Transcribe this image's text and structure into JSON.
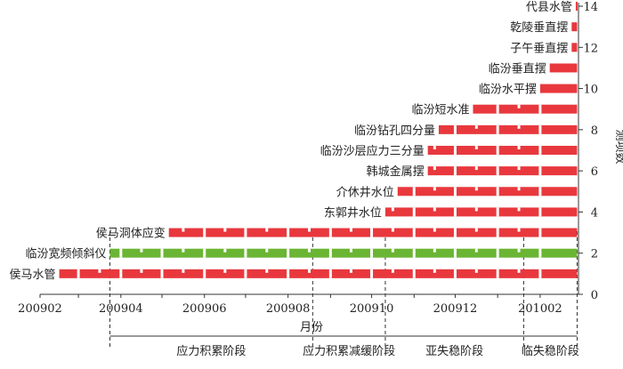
{
  "chart_data": {
    "type": "bar",
    "subtype": "horizontal-timeline",
    "xlabel": "月份",
    "ylabel": "测项数",
    "x_tick_labels": [
      "200902",
      "200904",
      "200906",
      "200908",
      "200910",
      "200912",
      "201002"
    ],
    "xlim": [
      "2009-02",
      "2010-02"
    ],
    "ylim": [
      0,
      14
    ],
    "y_ticks": [
      0,
      2,
      4,
      6,
      8,
      10,
      12,
      14
    ],
    "y_axis_side": "right",
    "colors": {
      "red": "#e8383d",
      "green": "#6ab533",
      "axis": "#333333",
      "dash": "#333333"
    },
    "bars": [
      {
        "label": "侯马水管",
        "level": 1,
        "start": "2009-02-15",
        "end": "2010-02-28",
        "color": "red"
      },
      {
        "label": "临汾宽频倾斜仪",
        "level": 2,
        "start": "2009-03-24",
        "end": "2010-02-28",
        "color": "green"
      },
      {
        "label": "侯马洞体应变",
        "level": 3,
        "start": "2009-05-06",
        "end": "2010-02-28",
        "color": "red"
      },
      {
        "label": "东郭井水位",
        "level": 4,
        "start": "2009-10-11",
        "end": "2010-02-28",
        "color": "red"
      },
      {
        "label": "介休井水位",
        "level": 5,
        "start": "2009-10-20",
        "end": "2010-02-28",
        "color": "red"
      },
      {
        "label": "韩城金属摆",
        "level": 6,
        "start": "2009-11-11",
        "end": "2010-02-28",
        "color": "red"
      },
      {
        "label": "临汾沙层应力三分量",
        "level": 7,
        "start": "2009-11-11",
        "end": "2010-02-28",
        "color": "red"
      },
      {
        "label": "临汾钻孔四分量",
        "level": 8,
        "start": "2009-11-19",
        "end": "2010-02-28",
        "color": "red"
      },
      {
        "label": "临汾短水准",
        "level": 9,
        "start": "2009-12-14",
        "end": "2010-02-28",
        "color": "red"
      },
      {
        "label": "临汾水平摆",
        "level": 10,
        "start": "2010-02-01",
        "end": "2010-02-28",
        "color": "red"
      },
      {
        "label": "临汾垂直摆",
        "level": 11,
        "start": "2010-02-08",
        "end": "2010-02-28",
        "color": "red"
      },
      {
        "label": "子午垂直摆",
        "level": 12,
        "start": "2010-02-24",
        "end": "2010-02-28",
        "color": "red"
      },
      {
        "label": "乾陵垂直摆",
        "level": 13,
        "start": "2010-02-24",
        "end": "2010-02-28",
        "color": "red"
      },
      {
        "label": "代县水管",
        "level": 14,
        "start": "2010-02-27",
        "end": "2010-02-28",
        "color": "red"
      }
    ],
    "stage_boundaries": [
      "2009-03-24",
      "2009-08-19",
      "2009-10-11",
      "2010-01-20",
      "2010-02-28"
    ],
    "stages": [
      {
        "label": "应力积累阶段",
        "start": "2009-03-24",
        "end": "2009-08-19"
      },
      {
        "label": "应力积累减缓阶段",
        "start": "2009-08-19",
        "end": "2009-10-11"
      },
      {
        "label": "亚失稳阶段",
        "start": "2009-10-11",
        "end": "2010-01-20"
      },
      {
        "label": "临失稳阶段",
        "start": "2010-01-20",
        "end": "2010-02-28"
      }
    ]
  }
}
